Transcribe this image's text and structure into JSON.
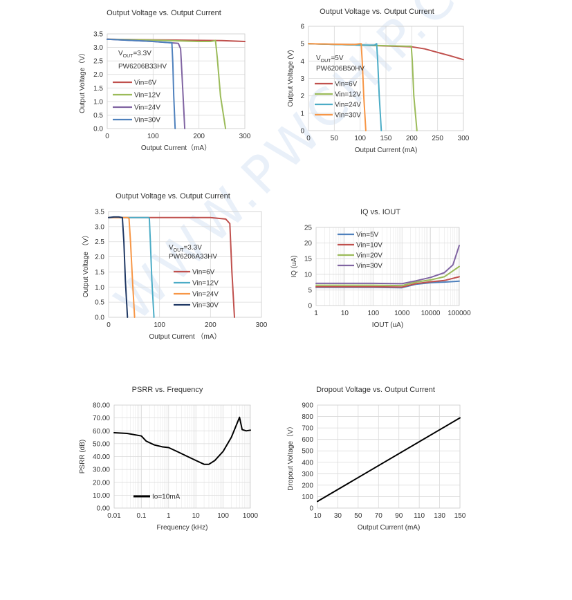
{
  "watermark": "WWW.PWCHIP.COM",
  "chart_data": [
    {
      "id": "c1",
      "type": "line",
      "title": "Output Voltage vs. Output Current",
      "xlabel": "Output Current（mA）",
      "ylabel": "Output Voltage（V）",
      "xlim": [
        0,
        300
      ],
      "ylim": [
        0,
        3.5
      ],
      "xticks": [
        0,
        100,
        200,
        300
      ],
      "yticks": [
        0,
        0.5,
        1,
        1.5,
        2,
        2.5,
        3,
        3.5
      ],
      "ytick_decimals": 1,
      "xscale": "linear",
      "grid": "both",
      "annotation_lines": [
        "VOUT=3.3V",
        "PW6206B33HV"
      ],
      "series": [
        {
          "name": "Vin=6V",
          "color": "#C0504D",
          "x": [
            0,
            100,
            200,
            250,
            300
          ],
          "y": [
            3.3,
            3.28,
            3.26,
            3.25,
            3.22
          ]
        },
        {
          "name": "Vin=12V",
          "color": "#9BBB59",
          "x": [
            0,
            100,
            200,
            225,
            232,
            236,
            240,
            247,
            258
          ],
          "y": [
            3.3,
            3.27,
            3.22,
            3.22,
            3.24,
            3.26,
            2.6,
            1.2,
            0
          ]
        },
        {
          "name": "Vin=24V",
          "color": "#8064A2",
          "x": [
            0,
            100,
            155,
            160,
            163,
            166,
            169
          ],
          "y": [
            3.3,
            3.22,
            3.15,
            2.95,
            2.0,
            1.0,
            0
          ]
        },
        {
          "name": "Vin=30V",
          "color": "#4F81BD",
          "x": [
            0,
            100,
            141,
            143,
            145,
            148
          ],
          "y": [
            3.3,
            3.22,
            3.17,
            2.4,
            1.2,
            0
          ]
        }
      ]
    },
    {
      "id": "c2",
      "type": "line",
      "title": "Output Voltage vs. Output Current",
      "xlabel": "Output Current (mA)",
      "ylabel": "Output Voltage (V)",
      "xlim": [
        0,
        300
      ],
      "ylim": [
        0,
        6
      ],
      "xticks": [
        0,
        50,
        100,
        150,
        200,
        250,
        300
      ],
      "yticks": [
        0,
        1,
        2,
        3,
        4,
        5,
        6
      ],
      "ytick_decimals": 0,
      "xscale": "linear",
      "grid": "both",
      "annotation_lines": [
        "VOUT=5V",
        "PW6206B50HV"
      ],
      "series": [
        {
          "name": "Vin=6V",
          "color": "#C0504D",
          "x": [
            0,
            100,
            200,
            225,
            250,
            275,
            300
          ],
          "y": [
            5.0,
            4.92,
            4.82,
            4.7,
            4.5,
            4.3,
            4.08
          ]
        },
        {
          "name": "Vin=12V",
          "color": "#9BBB59",
          "x": [
            0,
            100,
            190,
            199,
            201,
            204,
            210
          ],
          "y": [
            5.0,
            4.92,
            4.85,
            4.85,
            4.0,
            2.0,
            0
          ]
        },
        {
          "name": "Vin=24V",
          "color": "#4BACC6",
          "x": [
            0,
            100,
            128,
            132,
            134,
            137,
            141
          ],
          "y": [
            5.0,
            4.92,
            4.92,
            5.0,
            4.0,
            2.0,
            0
          ]
        },
        {
          "name": "Vin=30V",
          "color": "#F79646",
          "x": [
            0,
            90,
            100,
            102,
            104,
            107,
            111
          ],
          "y": [
            5.0,
            4.95,
            5.0,
            5.0,
            4.0,
            2.0,
            0
          ]
        }
      ]
    },
    {
      "id": "c3",
      "type": "line",
      "title": "Output Voltage vs. Output Current",
      "xlabel": "Output Current （mA）",
      "ylabel": "Output Voltage （V）",
      "xlim": [
        0,
        300
      ],
      "ylim": [
        0,
        3.5
      ],
      "xticks": [
        0,
        100,
        200,
        300
      ],
      "yticks": [
        0,
        0.5,
        1,
        1.5,
        2,
        2.5,
        3,
        3.5
      ],
      "ytick_decimals": 1,
      "xscale": "linear",
      "grid": "both",
      "annotation_lines": [
        "VOUT=3.3V",
        "PW6206A33HV"
      ],
      "series": [
        {
          "name": "Vin=6V",
          "color": "#C0504D",
          "x": [
            0,
            100,
            200,
            230,
            238,
            242,
            247
          ],
          "y": [
            3.3,
            3.3,
            3.3,
            3.25,
            3.1,
            1.5,
            0
          ]
        },
        {
          "name": "Vin=12V",
          "color": "#4BACC6",
          "x": [
            0,
            70,
            78,
            80,
            82,
            85,
            89
          ],
          "y": [
            3.3,
            3.3,
            3.3,
            3.28,
            2.5,
            1.2,
            0
          ]
        },
        {
          "name": "Vin=24V",
          "color": "#F79646",
          "x": [
            0,
            30,
            35,
            40,
            43,
            47,
            51
          ],
          "y": [
            3.3,
            3.3,
            3.3,
            3.28,
            2.5,
            1.2,
            0
          ]
        },
        {
          "name": "Vin=30V",
          "color": "#1F3864",
          "x": [
            0,
            10,
            20,
            27,
            30,
            33,
            37
          ],
          "y": [
            3.3,
            3.32,
            3.32,
            3.3,
            2.5,
            1.2,
            0
          ]
        }
      ]
    },
    {
      "id": "c4",
      "type": "line",
      "title": "IQ vs. IOUT",
      "xlabel": "IOUT (uA)",
      "ylabel": "IQ (uA)",
      "xlim": [
        1,
        100000
      ],
      "ylim": [
        0,
        25
      ],
      "xticks": [
        1,
        10,
        100,
        1000,
        10000,
        100000
      ],
      "yticks": [
        0,
        5,
        10,
        15,
        20,
        25
      ],
      "ytick_decimals": 0,
      "xscale": "log",
      "grid": "both",
      "annotation_lines": [],
      "series": [
        {
          "name": "Vin=5V",
          "color": "#4F81BD",
          "x": [
            1,
            10,
            100,
            1000,
            3000,
            10000,
            30000,
            100000
          ],
          "y": [
            5.8,
            5.8,
            5.8,
            5.7,
            6.8,
            7.3,
            7.5,
            7.8
          ]
        },
        {
          "name": "Vin=10V",
          "color": "#C0504D",
          "x": [
            1,
            10,
            100,
            1000,
            3000,
            10000,
            30000,
            100000
          ],
          "y": [
            6.0,
            6.0,
            6.0,
            5.9,
            7.0,
            7.6,
            8.0,
            9.2
          ]
        },
        {
          "name": "Vin=20V",
          "color": "#9BBB59",
          "x": [
            1,
            10,
            100,
            1000,
            3000,
            10000,
            30000,
            100000
          ],
          "y": [
            6.5,
            6.5,
            6.5,
            6.4,
            7.5,
            8.2,
            9.2,
            12.5
          ]
        },
        {
          "name": "Vin=30V",
          "color": "#8064A2",
          "x": [
            1,
            10,
            100,
            1000,
            3000,
            10000,
            30000,
            60000,
            100000
          ],
          "y": [
            7.1,
            7.1,
            7.1,
            7.0,
            7.9,
            9.0,
            10.5,
            13.0,
            19.2
          ]
        }
      ]
    },
    {
      "id": "c5",
      "type": "line",
      "title": "PSRR vs. Frequency",
      "xlabel": "Frequency (kHz)",
      "ylabel": "PSRR (dB)",
      "xlim": [
        0.01,
        1000
      ],
      "ylim": [
        0,
        80
      ],
      "xticks": [
        0.01,
        0.1,
        1,
        10,
        100,
        1000
      ],
      "yticks": [
        0,
        10,
        20,
        30,
        40,
        50,
        60,
        70,
        80
      ],
      "ytick_decimals": 2,
      "xscale": "log",
      "grid": "both",
      "annotation_lines": [],
      "series": [
        {
          "name": "Io=10mA",
          "color": "#000000",
          "x": [
            0.01,
            0.03,
            0.1,
            0.15,
            0.3,
            0.6,
            1,
            2,
            5,
            10,
            20,
            30,
            50,
            100,
            200,
            300,
            400,
            500,
            700,
            1000
          ],
          "y": [
            58.5,
            58,
            56,
            52,
            49,
            47.5,
            47,
            44,
            40,
            37,
            34,
            34,
            37,
            44,
            55,
            64,
            70.5,
            61,
            60,
            60.5
          ]
        }
      ]
    },
    {
      "id": "c6",
      "type": "line",
      "title": "Dropout Voltage vs. Output Current",
      "xlabel": "Output Current (mA)",
      "ylabel": "Dropout Voltage（V）",
      "xlim": [
        10,
        150
      ],
      "ylim": [
        0,
        900
      ],
      "xticks": [
        10,
        30,
        50,
        70,
        90,
        110,
        130,
        150
      ],
      "yticks": [
        0,
        100,
        200,
        300,
        400,
        500,
        600,
        700,
        800,
        900
      ],
      "ytick_decimals": 0,
      "xscale": "linear",
      "grid": "both",
      "annotation_lines": [],
      "series": [
        {
          "name": "",
          "color": "#000000",
          "x": [
            10,
            150
          ],
          "y": [
            58,
            788
          ]
        }
      ]
    }
  ]
}
